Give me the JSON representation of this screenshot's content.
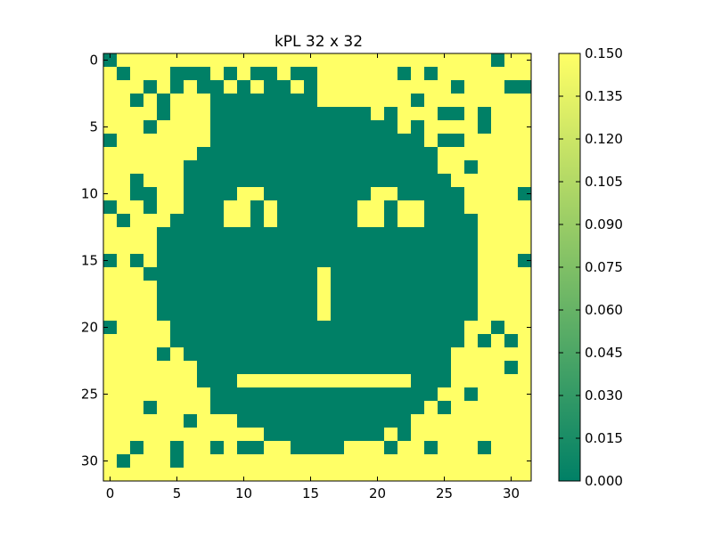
{
  "chart_data": {
    "type": "heatmap",
    "title": "kPL 32 x 32",
    "xlabel": "",
    "ylabel": "",
    "x_ticks": [
      0,
      5,
      10,
      15,
      20,
      25,
      30
    ],
    "y_ticks": [
      0,
      5,
      10,
      15,
      20,
      25,
      30
    ],
    "x_tick_labels": [
      "0",
      "5",
      "10",
      "15",
      "20",
      "25",
      "30"
    ],
    "y_tick_labels": [
      "0",
      "5",
      "10",
      "15",
      "20",
      "25",
      "30"
    ],
    "colorbar": {
      "min": 0.0,
      "max": 0.15,
      "ticks": [
        0.0,
        0.015,
        0.03,
        0.045,
        0.06,
        0.075,
        0.09,
        0.105,
        0.12,
        0.135,
        0.15
      ],
      "tick_labels": [
        "0.000",
        "0.015",
        "0.030",
        "0.045",
        "0.060",
        "0.075",
        "0.090",
        "0.105",
        "0.120",
        "0.135",
        "0.150"
      ],
      "colormap": "summer",
      "color_low": "#008066",
      "color_high": "#ffff66"
    },
    "grid": false,
    "rows": [
      [
        0.0,
        0.15,
        0.15,
        0.15,
        0.15,
        0.15,
        0.15,
        0.15,
        0.15,
        0.15,
        0.15,
        0.15,
        0.15,
        0.15,
        0.15,
        0.15,
        0.15,
        0.15,
        0.15,
        0.15,
        0.15,
        0.15,
        0.15,
        0.15,
        0.15,
        0.15,
        0.15,
        0.15,
        0.15,
        0.0,
        0.15,
        0.15
      ],
      [
        0.15,
        0.0,
        0.15,
        0.15,
        0.15,
        0.0,
        0.0,
        0.0,
        0.15,
        0.0,
        0.15,
        0.0,
        0.0,
        0.15,
        0.0,
        0.0,
        0.15,
        0.15,
        0.15,
        0.15,
        0.15,
        0.15,
        0.0,
        0.15,
        0.0,
        0.15,
        0.15,
        0.15,
        0.15,
        0.15,
        0.15,
        0.15
      ],
      [
        0.15,
        0.15,
        0.15,
        0.0,
        0.15,
        0.0,
        0.15,
        0.0,
        0.0,
        0.15,
        0.0,
        0.15,
        0.0,
        0.0,
        0.15,
        0.0,
        0.15,
        0.15,
        0.15,
        0.15,
        0.15,
        0.15,
        0.15,
        0.15,
        0.15,
        0.15,
        0.0,
        0.15,
        0.15,
        0.15,
        0.0,
        0.0
      ],
      [
        0.15,
        0.15,
        0.0,
        0.15,
        0.0,
        0.15,
        0.15,
        0.15,
        0.0,
        0.0,
        0.0,
        0.0,
        0.0,
        0.0,
        0.0,
        0.0,
        0.15,
        0.15,
        0.15,
        0.15,
        0.15,
        0.15,
        0.15,
        0.0,
        0.15,
        0.15,
        0.15,
        0.15,
        0.15,
        0.15,
        0.15,
        0.15
      ],
      [
        0.15,
        0.15,
        0.15,
        0.15,
        0.0,
        0.15,
        0.15,
        0.15,
        0.0,
        0.0,
        0.0,
        0.0,
        0.0,
        0.0,
        0.0,
        0.0,
        0.0,
        0.0,
        0.0,
        0.0,
        0.15,
        0.0,
        0.15,
        0.15,
        0.15,
        0.0,
        0.0,
        0.15,
        0.0,
        0.15,
        0.15,
        0.15
      ],
      [
        0.15,
        0.15,
        0.15,
        0.0,
        0.15,
        0.15,
        0.15,
        0.15,
        0.0,
        0.0,
        0.0,
        0.0,
        0.0,
        0.0,
        0.0,
        0.0,
        0.0,
        0.0,
        0.0,
        0.0,
        0.0,
        0.0,
        0.15,
        0.0,
        0.15,
        0.15,
        0.15,
        0.15,
        0.0,
        0.15,
        0.15,
        0.15
      ],
      [
        0.0,
        0.15,
        0.15,
        0.15,
        0.15,
        0.15,
        0.15,
        0.15,
        0.0,
        0.0,
        0.0,
        0.0,
        0.0,
        0.0,
        0.0,
        0.0,
        0.0,
        0.0,
        0.0,
        0.0,
        0.0,
        0.0,
        0.0,
        0.0,
        0.15,
        0.0,
        0.0,
        0.15,
        0.15,
        0.15,
        0.15,
        0.15
      ],
      [
        0.15,
        0.15,
        0.15,
        0.15,
        0.15,
        0.15,
        0.15,
        0.0,
        0.0,
        0.0,
        0.0,
        0.0,
        0.0,
        0.0,
        0.0,
        0.0,
        0.0,
        0.0,
        0.0,
        0.0,
        0.0,
        0.0,
        0.0,
        0.0,
        0.0,
        0.15,
        0.15,
        0.15,
        0.15,
        0.15,
        0.15,
        0.15
      ],
      [
        0.15,
        0.15,
        0.15,
        0.15,
        0.15,
        0.15,
        0.0,
        0.0,
        0.0,
        0.0,
        0.0,
        0.0,
        0.0,
        0.0,
        0.0,
        0.0,
        0.0,
        0.0,
        0.0,
        0.0,
        0.0,
        0.0,
        0.0,
        0.0,
        0.0,
        0.15,
        0.15,
        0.0,
        0.15,
        0.15,
        0.15,
        0.15
      ],
      [
        0.15,
        0.15,
        0.0,
        0.15,
        0.15,
        0.15,
        0.0,
        0.0,
        0.0,
        0.0,
        0.0,
        0.0,
        0.0,
        0.0,
        0.0,
        0.0,
        0.0,
        0.0,
        0.0,
        0.0,
        0.0,
        0.0,
        0.0,
        0.0,
        0.0,
        0.0,
        0.15,
        0.15,
        0.15,
        0.15,
        0.15,
        0.15
      ],
      [
        0.15,
        0.15,
        0.0,
        0.0,
        0.15,
        0.15,
        0.0,
        0.0,
        0.0,
        0.0,
        0.15,
        0.15,
        0.0,
        0.0,
        0.0,
        0.0,
        0.0,
        0.0,
        0.0,
        0.0,
        0.15,
        0.15,
        0.0,
        0.0,
        0.0,
        0.0,
        0.0,
        0.15,
        0.15,
        0.15,
        0.15,
        0.0
      ],
      [
        0.0,
        0.15,
        0.15,
        0.0,
        0.15,
        0.15,
        0.0,
        0.0,
        0.0,
        0.15,
        0.15,
        0.0,
        0.15,
        0.0,
        0.0,
        0.0,
        0.0,
        0.0,
        0.0,
        0.15,
        0.15,
        0.0,
        0.15,
        0.15,
        0.0,
        0.0,
        0.0,
        0.15,
        0.15,
        0.15,
        0.15,
        0.15
      ],
      [
        0.15,
        0.0,
        0.15,
        0.15,
        0.15,
        0.0,
        0.0,
        0.0,
        0.0,
        0.15,
        0.15,
        0.0,
        0.15,
        0.0,
        0.0,
        0.0,
        0.0,
        0.0,
        0.0,
        0.15,
        0.15,
        0.0,
        0.15,
        0.15,
        0.0,
        0.0,
        0.0,
        0.0,
        0.15,
        0.15,
        0.15,
        0.15
      ],
      [
        0.15,
        0.15,
        0.15,
        0.15,
        0.0,
        0.0,
        0.0,
        0.0,
        0.0,
        0.0,
        0.0,
        0.0,
        0.0,
        0.0,
        0.0,
        0.0,
        0.0,
        0.0,
        0.0,
        0.0,
        0.0,
        0.0,
        0.0,
        0.0,
        0.0,
        0.0,
        0.0,
        0.0,
        0.15,
        0.15,
        0.15,
        0.15
      ],
      [
        0.15,
        0.15,
        0.15,
        0.15,
        0.0,
        0.0,
        0.0,
        0.0,
        0.0,
        0.0,
        0.0,
        0.0,
        0.0,
        0.0,
        0.0,
        0.0,
        0.0,
        0.0,
        0.0,
        0.0,
        0.0,
        0.0,
        0.0,
        0.0,
        0.0,
        0.0,
        0.0,
        0.0,
        0.15,
        0.15,
        0.15,
        0.15
      ],
      [
        0.0,
        0.15,
        0.0,
        0.15,
        0.0,
        0.0,
        0.0,
        0.0,
        0.0,
        0.0,
        0.0,
        0.0,
        0.0,
        0.0,
        0.0,
        0.0,
        0.0,
        0.0,
        0.0,
        0.0,
        0.0,
        0.0,
        0.0,
        0.0,
        0.0,
        0.0,
        0.0,
        0.0,
        0.15,
        0.15,
        0.15,
        0.0
      ],
      [
        0.15,
        0.15,
        0.15,
        0.0,
        0.0,
        0.0,
        0.0,
        0.0,
        0.0,
        0.0,
        0.0,
        0.0,
        0.0,
        0.0,
        0.0,
        0.0,
        0.15,
        0.0,
        0.0,
        0.0,
        0.0,
        0.0,
        0.0,
        0.0,
        0.0,
        0.0,
        0.0,
        0.0,
        0.15,
        0.15,
        0.15,
        0.15
      ],
      [
        0.15,
        0.15,
        0.15,
        0.15,
        0.0,
        0.0,
        0.0,
        0.0,
        0.0,
        0.0,
        0.0,
        0.0,
        0.0,
        0.0,
        0.0,
        0.0,
        0.15,
        0.0,
        0.0,
        0.0,
        0.0,
        0.0,
        0.0,
        0.0,
        0.0,
        0.0,
        0.0,
        0.0,
        0.15,
        0.15,
        0.15,
        0.15
      ],
      [
        0.15,
        0.15,
        0.15,
        0.15,
        0.0,
        0.0,
        0.0,
        0.0,
        0.0,
        0.0,
        0.0,
        0.0,
        0.0,
        0.0,
        0.0,
        0.0,
        0.15,
        0.0,
        0.0,
        0.0,
        0.0,
        0.0,
        0.0,
        0.0,
        0.0,
        0.0,
        0.0,
        0.0,
        0.15,
        0.15,
        0.15,
        0.15
      ],
      [
        0.15,
        0.15,
        0.15,
        0.15,
        0.0,
        0.0,
        0.0,
        0.0,
        0.0,
        0.0,
        0.0,
        0.0,
        0.0,
        0.0,
        0.0,
        0.0,
        0.15,
        0.0,
        0.0,
        0.0,
        0.0,
        0.0,
        0.0,
        0.0,
        0.0,
        0.0,
        0.0,
        0.0,
        0.15,
        0.15,
        0.15,
        0.15
      ],
      [
        0.0,
        0.15,
        0.15,
        0.15,
        0.15,
        0.0,
        0.0,
        0.0,
        0.0,
        0.0,
        0.0,
        0.0,
        0.0,
        0.0,
        0.0,
        0.0,
        0.0,
        0.0,
        0.0,
        0.0,
        0.0,
        0.0,
        0.0,
        0.0,
        0.0,
        0.0,
        0.0,
        0.15,
        0.15,
        0.0,
        0.15,
        0.15
      ],
      [
        0.15,
        0.15,
        0.15,
        0.15,
        0.15,
        0.0,
        0.0,
        0.0,
        0.0,
        0.0,
        0.0,
        0.0,
        0.0,
        0.0,
        0.0,
        0.0,
        0.0,
        0.0,
        0.0,
        0.0,
        0.0,
        0.0,
        0.0,
        0.0,
        0.0,
        0.0,
        0.0,
        0.15,
        0.0,
        0.15,
        0.0,
        0.15
      ],
      [
        0.15,
        0.15,
        0.15,
        0.15,
        0.0,
        0.15,
        0.0,
        0.0,
        0.0,
        0.0,
        0.0,
        0.0,
        0.0,
        0.0,
        0.0,
        0.0,
        0.0,
        0.0,
        0.0,
        0.0,
        0.0,
        0.0,
        0.0,
        0.0,
        0.0,
        0.0,
        0.15,
        0.15,
        0.15,
        0.15,
        0.15,
        0.15
      ],
      [
        0.15,
        0.15,
        0.15,
        0.15,
        0.15,
        0.15,
        0.15,
        0.0,
        0.0,
        0.0,
        0.0,
        0.0,
        0.0,
        0.0,
        0.0,
        0.0,
        0.0,
        0.0,
        0.0,
        0.0,
        0.0,
        0.0,
        0.0,
        0.0,
        0.0,
        0.0,
        0.15,
        0.15,
        0.15,
        0.15,
        0.0,
        0.15
      ],
      [
        0.15,
        0.15,
        0.15,
        0.15,
        0.15,
        0.15,
        0.15,
        0.0,
        0.0,
        0.0,
        0.15,
        0.15,
        0.15,
        0.15,
        0.15,
        0.15,
        0.15,
        0.15,
        0.15,
        0.15,
        0.15,
        0.15,
        0.15,
        0.0,
        0.0,
        0.0,
        0.15,
        0.15,
        0.15,
        0.15,
        0.15,
        0.15
      ],
      [
        0.15,
        0.15,
        0.15,
        0.15,
        0.15,
        0.15,
        0.15,
        0.15,
        0.0,
        0.0,
        0.0,
        0.0,
        0.0,
        0.0,
        0.0,
        0.0,
        0.0,
        0.0,
        0.0,
        0.0,
        0.0,
        0.0,
        0.0,
        0.0,
        0.0,
        0.15,
        0.15,
        0.0,
        0.15,
        0.15,
        0.15,
        0.15
      ],
      [
        0.15,
        0.15,
        0.15,
        0.0,
        0.15,
        0.15,
        0.15,
        0.15,
        0.0,
        0.0,
        0.0,
        0.0,
        0.0,
        0.0,
        0.0,
        0.0,
        0.0,
        0.0,
        0.0,
        0.0,
        0.0,
        0.0,
        0.0,
        0.0,
        0.15,
        0.0,
        0.15,
        0.15,
        0.15,
        0.15,
        0.15,
        0.15
      ],
      [
        0.15,
        0.15,
        0.15,
        0.15,
        0.15,
        0.15,
        0.0,
        0.15,
        0.15,
        0.15,
        0.0,
        0.0,
        0.0,
        0.0,
        0.0,
        0.0,
        0.0,
        0.0,
        0.0,
        0.0,
        0.0,
        0.0,
        0.0,
        0.15,
        0.15,
        0.15,
        0.15,
        0.15,
        0.15,
        0.15,
        0.15,
        0.15
      ],
      [
        0.15,
        0.15,
        0.15,
        0.15,
        0.15,
        0.15,
        0.15,
        0.15,
        0.15,
        0.15,
        0.15,
        0.15,
        0.0,
        0.0,
        0.0,
        0.0,
        0.0,
        0.0,
        0.0,
        0.0,
        0.0,
        0.15,
        0.0,
        0.15,
        0.15,
        0.15,
        0.15,
        0.15,
        0.15,
        0.15,
        0.15,
        0.15
      ],
      [
        0.15,
        0.15,
        0.0,
        0.15,
        0.15,
        0.0,
        0.15,
        0.15,
        0.0,
        0.15,
        0.0,
        0.0,
        0.15,
        0.15,
        0.0,
        0.0,
        0.0,
        0.0,
        0.15,
        0.15,
        0.15,
        0.0,
        0.15,
        0.15,
        0.0,
        0.15,
        0.15,
        0.15,
        0.0,
        0.15,
        0.15,
        0.15
      ],
      [
        0.15,
        0.0,
        0.15,
        0.15,
        0.15,
        0.0,
        0.15,
        0.15,
        0.15,
        0.15,
        0.15,
        0.15,
        0.15,
        0.15,
        0.15,
        0.15,
        0.15,
        0.15,
        0.15,
        0.15,
        0.15,
        0.15,
        0.15,
        0.15,
        0.15,
        0.15,
        0.15,
        0.15,
        0.15,
        0.15,
        0.15,
        0.15
      ],
      [
        0.15,
        0.15,
        0.15,
        0.15,
        0.15,
        0.15,
        0.15,
        0.15,
        0.15,
        0.15,
        0.15,
        0.15,
        0.15,
        0.15,
        0.15,
        0.15,
        0.15,
        0.15,
        0.15,
        0.15,
        0.15,
        0.15,
        0.15,
        0.15,
        0.15,
        0.15,
        0.15,
        0.15,
        0.15,
        0.15,
        0.15,
        0.15
      ]
    ]
  }
}
